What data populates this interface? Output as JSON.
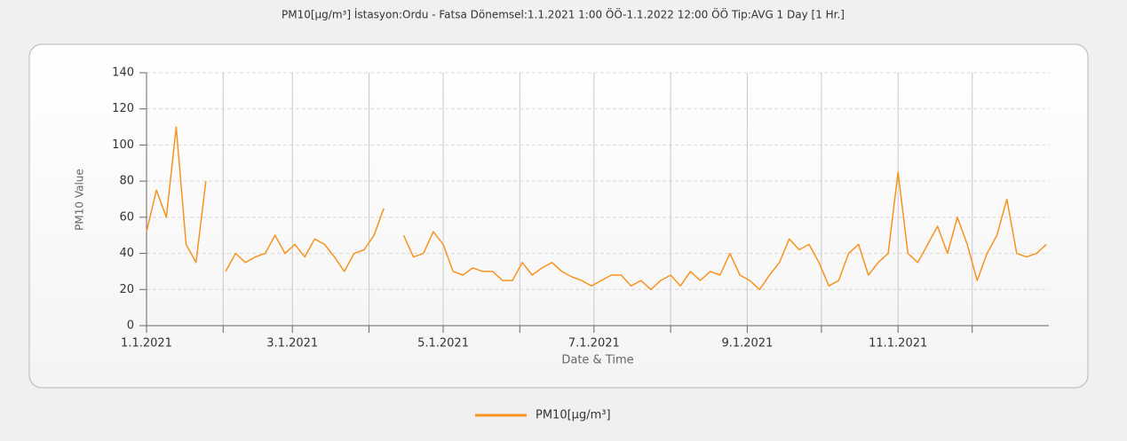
{
  "chart_data": {
    "type": "line",
    "title": "PM10[µg/m³] İstasyon:Ordu - Fatsa  Dönemsel:1.1.2021 1:00 ÖÖ-1.1.2022 12:00 ÖÖ  Tip:AVG 1 Day [1 Hr.]",
    "x_label": "Date & Time",
    "y_label": "PM10 Value",
    "x": [
      "2021-01-01",
      "2021-01-05",
      "2021-01-09",
      "2021-01-13",
      "2021-01-17",
      "2021-01-21",
      "2021-01-25",
      "2021-01-29",
      "2021-02-02",
      "2021-02-06",
      "2021-02-10",
      "2021-02-14",
      "2021-02-18",
      "2021-02-22",
      "2021-02-26",
      "2021-03-02",
      "2021-03-06",
      "2021-03-10",
      "2021-03-14",
      "2021-03-18",
      "2021-03-22",
      "2021-03-26",
      "2021-03-30",
      "2021-04-03",
      "2021-04-07",
      "2021-04-11",
      "2021-04-15",
      "2021-04-19",
      "2021-04-23",
      "2021-04-27",
      "2021-05-01",
      "2021-05-05",
      "2021-05-09",
      "2021-05-13",
      "2021-05-17",
      "2021-05-21",
      "2021-05-25",
      "2021-05-29",
      "2021-06-02",
      "2021-06-06",
      "2021-06-10",
      "2021-06-14",
      "2021-06-18",
      "2021-06-22",
      "2021-06-26",
      "2021-06-30",
      "2021-07-04",
      "2021-07-08",
      "2021-07-12",
      "2021-07-16",
      "2021-07-20",
      "2021-07-24",
      "2021-07-28",
      "2021-08-01",
      "2021-08-05",
      "2021-08-09",
      "2021-08-13",
      "2021-08-17",
      "2021-08-21",
      "2021-08-25",
      "2021-08-29",
      "2021-09-02",
      "2021-09-06",
      "2021-09-10",
      "2021-09-14",
      "2021-09-18",
      "2021-09-22",
      "2021-09-26",
      "2021-09-30",
      "2021-10-04",
      "2021-10-08",
      "2021-10-12",
      "2021-10-16",
      "2021-10-20",
      "2021-10-24",
      "2021-10-28",
      "2021-11-01",
      "2021-11-05",
      "2021-11-09",
      "2021-11-13",
      "2021-11-17",
      "2021-11-21",
      "2021-11-25",
      "2021-11-29",
      "2021-12-03",
      "2021-12-07",
      "2021-12-11",
      "2021-12-15",
      "2021-12-19",
      "2021-12-23",
      "2021-12-27",
      "2021-12-31"
    ],
    "series": [
      {
        "name": "PM10[µg/m³]",
        "color": "#f7931e",
        "values": [
          52,
          75,
          60,
          110,
          45,
          35,
          80,
          null,
          30,
          40,
          35,
          38,
          40,
          50,
          40,
          45,
          38,
          48,
          45,
          38,
          30,
          40,
          42,
          50,
          65,
          null,
          50,
          38,
          40,
          52,
          45,
          30,
          28,
          32,
          30,
          30,
          25,
          25,
          35,
          28,
          32,
          35,
          30,
          27,
          25,
          22,
          25,
          28,
          28,
          22,
          25,
          20,
          25,
          28,
          22,
          30,
          25,
          30,
          28,
          40,
          28,
          25,
          20,
          28,
          35,
          48,
          42,
          45,
          35,
          22,
          25,
          40,
          45,
          28,
          35,
          40,
          85,
          40,
          35,
          45,
          55,
          40,
          60,
          45,
          25,
          40,
          50,
          70,
          40,
          38,
          40,
          45
        ]
      }
    ],
    "xlim": [
      "2021-01-01",
      "2022-01-01"
    ],
    "xticks": [
      {
        "value": "2021-01-01",
        "label": "1.1.2021"
      },
      {
        "value": "2021-02-01",
        "label": null
      },
      {
        "value": "2021-03-01",
        "label": "3.1.2021"
      },
      {
        "value": "2021-04-01",
        "label": null
      },
      {
        "value": "2021-05-01",
        "label": "5.1.2021"
      },
      {
        "value": "2021-06-01",
        "label": null
      },
      {
        "value": "2021-07-01",
        "label": "7.1.2021"
      },
      {
        "value": "2021-08-01",
        "label": null
      },
      {
        "value": "2021-09-01",
        "label": "9.1.2021"
      },
      {
        "value": "2021-10-01",
        "label": null
      },
      {
        "value": "2021-11-01",
        "label": "11.1.2021"
      },
      {
        "value": "2021-12-01",
        "label": null
      }
    ],
    "ylim": [
      0,
      140
    ],
    "yticks": [
      0,
      20,
      40,
      60,
      80,
      100,
      120,
      140
    ],
    "grid": true,
    "legend": "bottom"
  }
}
